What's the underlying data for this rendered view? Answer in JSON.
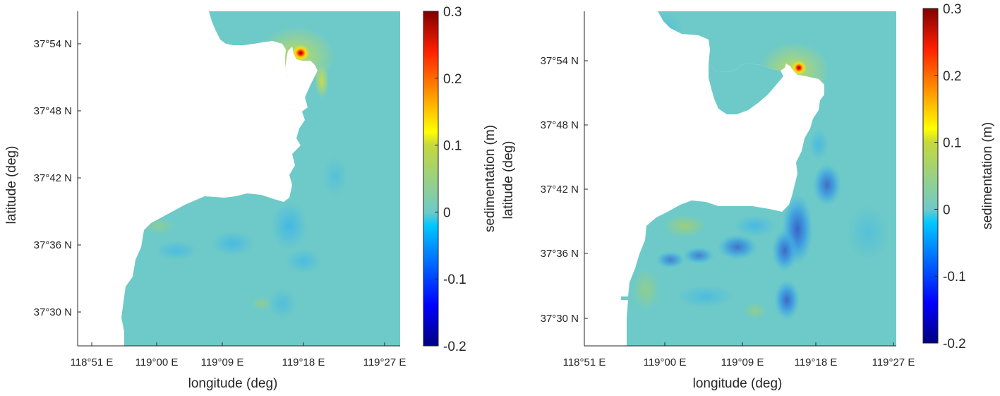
{
  "colorbar_ticks": [
    "0.3",
    "0.2",
    "0.1",
    "0",
    "-0.1",
    "-0.2"
  ],
  "chart_data": [
    {
      "type": "heatmap",
      "title": "",
      "xlabel": "longitude (deg)",
      "ylabel": "latitude (deg)",
      "colorbar_label": "sedimentation (m)",
      "x_ticks": [
        "118°51 E",
        "119°00 E",
        "119°09 E",
        "119°18 E",
        "119°27 E"
      ],
      "y_ticks": [
        "37°54 N",
        "37°48 N",
        "37°42 N",
        "37°36 N",
        "37°30 N"
      ],
      "xlim": [
        "118°51 E",
        "119°27 E"
      ],
      "ylim": [
        "37°27 N",
        "37°57 N"
      ],
      "clim": [
        -0.2,
        0.3
      ],
      "colormap": "jet",
      "background_value": 0,
      "land_color": "#ffffff",
      "features": [
        {
          "kind": "deposition_max",
          "lon": "119°17 E",
          "lat": "37°53.5 N",
          "value": 0.3
        },
        {
          "kind": "erosion_patch",
          "lon": "119°14 E",
          "lat": "37°37 N",
          "value": -0.05
        },
        {
          "kind": "erosion_patch",
          "lon": "119°04 E",
          "lat": "37°36 N",
          "value": -0.05
        },
        {
          "kind": "erosion_patch",
          "lon": "119°16 E",
          "lat": "37°35 N",
          "value": -0.05
        }
      ]
    },
    {
      "type": "heatmap",
      "title": "",
      "xlabel": "longitude (deg)",
      "ylabel": "latitude (deg)",
      "colorbar_label": "sedimentation (m)",
      "x_ticks": [
        "118°51 E",
        "119°00 E",
        "119°09 E",
        "119°18 E",
        "119°27 E"
      ],
      "y_ticks": [
        "37°54 N",
        "37°48 N",
        "37°42 N",
        "37°36 N",
        "37°30 N"
      ],
      "xlim": [
        "118°51 E",
        "119°27 E"
      ],
      "ylim": [
        "37°27 N",
        "37°57 N"
      ],
      "clim": [
        -0.2,
        0.3
      ],
      "colormap": "jet",
      "background_value": 0,
      "land_color": "#ffffff",
      "features": [
        {
          "kind": "deposition_max",
          "lon": "119°17 E",
          "lat": "37°53.5 N",
          "value": 0.3
        },
        {
          "kind": "erosion_patch",
          "lon": "119°15 E",
          "lat": "37°37 N",
          "value": -0.12
        },
        {
          "kind": "erosion_patch",
          "lon": "119°14 E",
          "lat": "37°31 N",
          "value": -0.12
        },
        {
          "kind": "erosion_patch",
          "lon": "119°20 E",
          "lat": "37°42 N",
          "value": -0.1
        },
        {
          "kind": "erosion_patch",
          "lon": "119°02 E",
          "lat": "37°35 N",
          "value": -0.1
        }
      ]
    }
  ]
}
